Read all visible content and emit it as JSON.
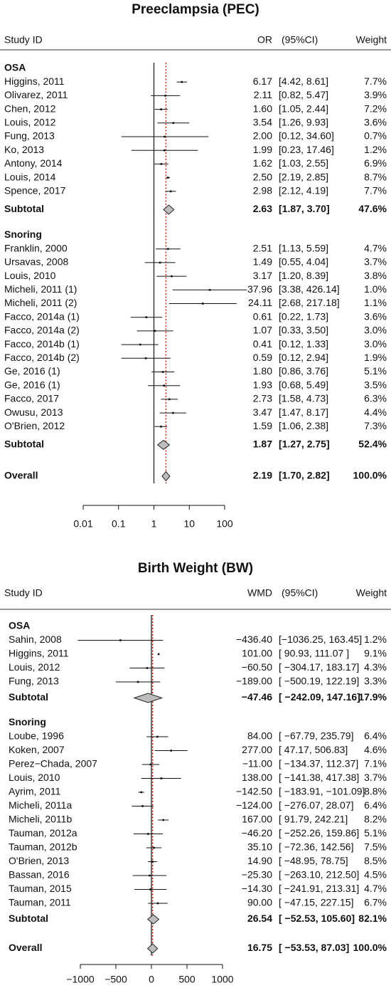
{
  "chart_data": [
    {
      "type": "forest",
      "title": "Preeclampsia (PEC)",
      "columns": {
        "study": "Study ID",
        "effect": "OR",
        "ci": "(95%CI)",
        "weight": "Weight"
      },
      "scale": "log",
      "ticks": [
        0.01,
        0.1,
        1,
        10,
        100
      ],
      "tick_labels": [
        "0.01",
        "0.1",
        "1",
        "10",
        "100"
      ],
      "null_value": 1,
      "overall_line": 2.19,
      "groups": [
        {
          "name": "OSA",
          "studies": [
            {
              "label": "Higgins, 2011",
              "est": 6.17,
              "lo": 4.42,
              "hi": 8.61,
              "est_text": "6.17",
              "ci_text": "[4.42, 8.61]",
              "weight_text": "7.7%"
            },
            {
              "label": "Olivarez, 2011",
              "est": 2.11,
              "lo": 0.82,
              "hi": 5.47,
              "est_text": "2.11",
              "ci_text": "[0.82, 5.47]",
              "weight_text": "3.9%"
            },
            {
              "label": "Chen, 2012",
              "est": 1.6,
              "lo": 1.05,
              "hi": 2.44,
              "est_text": "1.60",
              "ci_text": "[1.05, 2.44]",
              "weight_text": "7.2%"
            },
            {
              "label": "Louis, 2012",
              "est": 3.54,
              "lo": 1.26,
              "hi": 9.93,
              "est_text": "3.54",
              "ci_text": "[1.26, 9.93]",
              "weight_text": "3.6%"
            },
            {
              "label": "Fung, 2013",
              "est": 2.0,
              "lo": 0.12,
              "hi": 34.6,
              "est_text": "2.00",
              "ci_text": "[0.12, 34.60]",
              "weight_text": "0.7%"
            },
            {
              "label": "Ko, 2013",
              "est": 1.99,
              "lo": 0.23,
              "hi": 17.46,
              "est_text": "1.99",
              "ci_text": "[0.23, 17.46]",
              "weight_text": "1.2%"
            },
            {
              "label": "Antony, 2014",
              "est": 1.62,
              "lo": 1.03,
              "hi": 2.55,
              "est_text": "1.62",
              "ci_text": "[1.03, 2.55]",
              "weight_text": "6.9%"
            },
            {
              "label": "Louis, 2014",
              "est": 2.5,
              "lo": 2.19,
              "hi": 2.85,
              "est_text": "2.50",
              "ci_text": "[2.19, 2.85]",
              "weight_text": "8.7%"
            },
            {
              "label": "Spence, 2017",
              "est": 2.98,
              "lo": 2.12,
              "hi": 4.19,
              "est_text": "2.98",
              "ci_text": "[2.12, 4.19]",
              "weight_text": "7.7%"
            }
          ],
          "subtotal": {
            "label": "Subtotal",
            "est": 2.63,
            "lo": 1.87,
            "hi": 3.7,
            "est_text": "2.63",
            "ci_text": "[1.87, 3.70]",
            "weight_text": "47.6%"
          }
        },
        {
          "name": "Snoring",
          "studies": [
            {
              "label": "Franklin, 2000",
              "est": 2.51,
              "lo": 1.13,
              "hi": 5.59,
              "est_text": "2.51",
              "ci_text": "[1.13, 5.59]",
              "weight_text": "4.7%"
            },
            {
              "label": "Ursavas, 2008",
              "est": 1.49,
              "lo": 0.55,
              "hi": 4.04,
              "est_text": "1.49",
              "ci_text": "[0.55, 4.04]",
              "weight_text": "3.7%"
            },
            {
              "label": "Louis, 2010",
              "est": 3.17,
              "lo": 1.2,
              "hi": 8.39,
              "est_text": "3.17",
              "ci_text": "[1.20, 8.39]",
              "weight_text": "3.8%"
            },
            {
              "label": "Micheli, 2011 (1)",
              "est": 37.96,
              "lo": 3.38,
              "hi": 426.14,
              "est_text": "37.96",
              "ci_text": "[3.38, 426.14]",
              "weight_text": "1.0%"
            },
            {
              "label": "Micheli, 2011 (2)",
              "est": 24.11,
              "lo": 2.68,
              "hi": 217.18,
              "est_text": "24.11",
              "ci_text": "[2.68, 217.18]",
              "weight_text": "1.1%"
            },
            {
              "label": "Facco, 2014a (1)",
              "est": 0.61,
              "lo": 0.22,
              "hi": 1.73,
              "est_text": "0.61",
              "ci_text": "[0.22, 1.73]",
              "weight_text": "3.6%"
            },
            {
              "label": "Facco, 2014a (2)",
              "est": 1.07,
              "lo": 0.33,
              "hi": 3.5,
              "est_text": "1.07",
              "ci_text": "[0.33, 3.50]",
              "weight_text": "3.0%"
            },
            {
              "label": "Facco, 2014b (1)",
              "est": 0.41,
              "lo": 0.12,
              "hi": 1.33,
              "est_text": "0.41",
              "ci_text": "[0.12, 1.33]",
              "weight_text": "3.0%"
            },
            {
              "label": "Facco, 2014b (2)",
              "est": 0.59,
              "lo": 0.12,
              "hi": 2.94,
              "est_text": "0.59",
              "ci_text": "[0.12, 2.94]",
              "weight_text": "1.9%"
            },
            {
              "label": "Ge, 2016 (1)",
              "est": 1.8,
              "lo": 0.86,
              "hi": 3.76,
              "est_text": "1.80",
              "ci_text": "[0.86, 3.76]",
              "weight_text": "5.1%"
            },
            {
              "label": "Ge, 2016 (1)",
              "est": 1.93,
              "lo": 0.68,
              "hi": 5.49,
              "est_text": "1.93",
              "ci_text": "[0.68, 5.49]",
              "weight_text": "3.5%"
            },
            {
              "label": "Facco, 2017",
              "est": 2.73,
              "lo": 1.58,
              "hi": 4.73,
              "est_text": "2.73",
              "ci_text": "[1.58, 4.73]",
              "weight_text": "6.3%"
            },
            {
              "label": "Owusu, 2013",
              "est": 3.47,
              "lo": 1.47,
              "hi": 8.17,
              "est_text": "3.47",
              "ci_text": "[1.47, 8.17]",
              "weight_text": "4.4%"
            },
            {
              "label": "O'Brien, 2012",
              "est": 1.59,
              "lo": 1.06,
              "hi": 2.38,
              "est_text": "1.59",
              "ci_text": "[1.06, 2.38]",
              "weight_text": "7.3%"
            }
          ],
          "subtotal": {
            "label": "Subtotal",
            "est": 1.87,
            "lo": 1.27,
            "hi": 2.75,
            "est_text": "1.87",
            "ci_text": "[1.27, 2.75]",
            "weight_text": "52.4%"
          }
        }
      ],
      "overall": {
        "label": "Overall",
        "est": 2.19,
        "lo": 1.7,
        "hi": 2.82,
        "est_text": "2.19",
        "ci_text": "[1.70, 2.82]",
        "weight_text": "100.0%"
      }
    },
    {
      "type": "forest",
      "title": "Birth Weight (BW)",
      "columns": {
        "study": "Study ID",
        "effect": "WMD",
        "ci": "(95%CI)",
        "weight": "Weight"
      },
      "scale": "linear",
      "ticks": [
        -1000,
        -500,
        0,
        500,
        1000
      ],
      "tick_labels": [
        "−1000",
        "−500",
        "0",
        "500",
        "1000"
      ],
      "null_value": 0,
      "overall_line": 16.75,
      "groups": [
        {
          "name": "OSA",
          "studies": [
            {
              "label": "Sahin, 2008",
              "est": -436.4,
              "lo": -1036.25,
              "hi": 163.45,
              "est_text": "−436.40",
              "ci_text": "[−1036.25, 163.45]",
              "weight_text": "1.2%"
            },
            {
              "label": "Higgins, 2011",
              "est": 101.0,
              "lo": 90.93,
              "hi": 111.07,
              "est_text": "101.00",
              "ci_text": "[ 90.93, 111.07 ]",
              "weight_text": "9.1%"
            },
            {
              "label": "Louis, 2012",
              "est": -60.5,
              "lo": -304.17,
              "hi": 183.17,
              "est_text": "−60.50",
              "ci_text": "[ −304.17, 183.17]",
              "weight_text": "4.3%"
            },
            {
              "label": "Fung, 2013",
              "est": -189.0,
              "lo": -500.19,
              "hi": 122.19,
              "est_text": "−189.00",
              "ci_text": "[ −500.19, 122.19]",
              "weight_text": "3.3%"
            }
          ],
          "subtotal": {
            "label": "Subtotal",
            "est": -47.46,
            "lo": -242.09,
            "hi": 147.16,
            "est_text": "−47.46",
            "ci_text": "[ −242.09, 147.16]",
            "weight_text": "17.9%"
          }
        },
        {
          "name": "Snoring",
          "studies": [
            {
              "label": "Loube, 1996",
              "est": 84.0,
              "lo": -67.79,
              "hi": 235.79,
              "est_text": "84.00",
              "ci_text": "[ −67.79, 235.79]",
              "weight_text": "6.4%"
            },
            {
              "label": "Koken, 2007",
              "est": 277.0,
              "lo": 47.17,
              "hi": 506.83,
              "est_text": "277.00",
              "ci_text": "[  47.17, 506.83]",
              "weight_text": "4.6%"
            },
            {
              "label": "Perez−Chada, 2007",
              "est": -11.0,
              "lo": -134.37,
              "hi": 112.37,
              "est_text": "−11.00",
              "ci_text": "[ −134.37, 112.37]",
              "weight_text": "7.1%"
            },
            {
              "label": "Louis, 2010",
              "est": 138.0,
              "lo": -141.38,
              "hi": 417.38,
              "est_text": "138.00",
              "ci_text": "[ −141.38, 417.38]",
              "weight_text": "3.7%"
            },
            {
              "label": "Ayrim, 2011",
              "est": -142.5,
              "lo": -183.91,
              "hi": -101.09,
              "est_text": "−142.50",
              "ci_text": "[ −183.91, −101.09]",
              "weight_text": "8.8%"
            },
            {
              "label": "Micheli, 2011a",
              "est": -124.0,
              "lo": -276.07,
              "hi": 28.07,
              "est_text": "−124.00",
              "ci_text": "[ −276.07, 28.07]",
              "weight_text": "6.4%"
            },
            {
              "label": "Micheli, 2011b",
              "est": 167.0,
              "lo": 91.79,
              "hi": 242.21,
              "est_text": "167.00",
              "ci_text": "[  91.79, 242.21]",
              "weight_text": "8.2%"
            },
            {
              "label": "Tauman, 2012a",
              "est": -46.2,
              "lo": -252.26,
              "hi": 159.86,
              "est_text": "−46.20",
              "ci_text": "[ −252.26, 159.86]",
              "weight_text": "5.1%"
            },
            {
              "label": "Tauman, 2012b",
              "est": 35.1,
              "lo": -72.36,
              "hi": 142.56,
              "est_text": "35.10",
              "ci_text": "[ −72.36, 142.56]",
              "weight_text": "7.5%"
            },
            {
              "label": "O'Brien, 2013",
              "est": 14.9,
              "lo": -48.95,
              "hi": 78.75,
              "est_text": "14.90",
              "ci_text": "[ −48.95, 78.75]",
              "weight_text": "8.5%"
            },
            {
              "label": "Bassan, 2016",
              "est": -25.3,
              "lo": -263.1,
              "hi": 212.5,
              "est_text": "−25.30",
              "ci_text": "[ −263.10, 212.50]",
              "weight_text": "4.5%"
            },
            {
              "label": "Tauman, 2015",
              "est": -14.3,
              "lo": -241.91,
              "hi": 213.31,
              "est_text": "−14.30",
              "ci_text": "[ −241.91, 213.31]",
              "weight_text": "4.7%"
            },
            {
              "label": "Tauman, 2011",
              "est": 90.0,
              "lo": -47.15,
              "hi": 227.15,
              "est_text": "90.00",
              "ci_text": "[ −47.15, 227.15]",
              "weight_text": "6.7%"
            }
          ],
          "subtotal": {
            "label": "Subtotal",
            "est": 26.54,
            "lo": -52.53,
            "hi": 105.6,
            "est_text": "26.54",
            "ci_text": "[ −52.53, 105.60]",
            "weight_text": "82.1%"
          }
        }
      ],
      "overall": {
        "label": "Overall",
        "est": 16.75,
        "lo": -53.53,
        "hi": 87.03,
        "est_text": "16.75",
        "ci_text": "[ −53.53, 87.03]",
        "weight_text": "100.0%"
      }
    }
  ],
  "colors": {
    "text": "#111111",
    "reference_line": "#d42a1f",
    "diamond_fill": "#bdbdbd"
  }
}
